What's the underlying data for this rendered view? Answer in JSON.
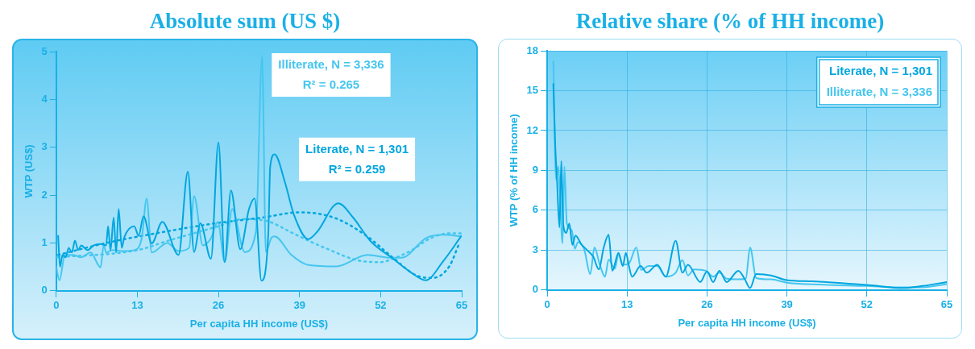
{
  "chart_data": [
    {
      "type": "line",
      "title": "Absolute sum (US $)",
      "xlabel": "Per capita HH income (US$)",
      "ylabel": "WTP (US$)",
      "xlim": [
        0,
        65
      ],
      "xticks": [
        0,
        13,
        26,
        39,
        52,
        65
      ],
      "ylim": [
        0,
        5
      ],
      "yticks": [
        0,
        1,
        2,
        3,
        4,
        5
      ],
      "grid": false,
      "legend": false,
      "marker": "none",
      "annotations": [
        "R² = 0.259",
        "R² = 0.265"
      ],
      "series": [
        {
          "name": "Literate, N = 1,301",
          "color": "#00a6df",
          "x": [
            0.3,
            0.6,
            1,
            1.5,
            2,
            2.5,
            3,
            3.5,
            4,
            5,
            6,
            7,
            8,
            8.3,
            8.7,
            9.2,
            9.6,
            10,
            10.5,
            10.9,
            12.5,
            13.2,
            14,
            15.3,
            17,
            19.6,
            21.1,
            22.1,
            23.1,
            24.8,
            26,
            27,
            28,
            29.5,
            30.9,
            31.8,
            32.9,
            34,
            34.3,
            35,
            36.7,
            38.1,
            40.4,
            41.8,
            45.2,
            47.6,
            50.3,
            54,
            56.7,
            59.2,
            62.1,
            64.9
          ],
          "values": [
            1.15,
            0.5,
            0.75,
            0.7,
            0.9,
            0.8,
            1.05,
            0.85,
            0.95,
            0.85,
            0.95,
            0.98,
            0.95,
            1.35,
            0.85,
            1.53,
            0.8,
            1.71,
            0.9,
            1.12,
            1.35,
            1.15,
            1.56,
            0.99,
            1.44,
            0.75,
            2.49,
            0.81,
            1.41,
            0.67,
            3.1,
            0.6,
            2.1,
            0.87,
            1.71,
            1.93,
            0.21,
            1.23,
            2.6,
            2.85,
            2.25,
            1.59,
            1.08,
            1.23,
            1.83,
            1.53,
            1.05,
            0.67,
            0.4,
            0.22,
            0.63,
            1.14
          ]
        },
        {
          "name": "Illiterate, N = 3,336",
          "color": "#45c6ef",
          "x": [
            0,
            0.5,
            1.4,
            2.7,
            4,
            5.5,
            7.1,
            7.6,
            8,
            9,
            10.7,
            12.5,
            13.7,
            14.5,
            15.3,
            17.8,
            19.6,
            21.3,
            22.1,
            23.5,
            24.8,
            25.9,
            27,
            28.2,
            30.2,
            32,
            33,
            33.6,
            34.5,
            35,
            37.7,
            40.4,
            44.9,
            49.9,
            53.5,
            55.3,
            59.4,
            62.1,
            64.9
          ],
          "values": [
            0.5,
            0.22,
            0.75,
            0.75,
            0.7,
            0.8,
            0.49,
            0.95,
            0.8,
            0.85,
            0.83,
            0.85,
            1.1,
            1.93,
            0.8,
            1.0,
            0.83,
            0.9,
            1.98,
            0.95,
            1.1,
            1.44,
            0.6,
            1.71,
            0.81,
            1.23,
            4.9,
            0.81,
            1.11,
            1.14,
            0.75,
            0.54,
            0.51,
            0.75,
            0.69,
            0.69,
            1.11,
            1.17,
            1.14
          ]
        },
        {
          "type": "line",
          "color": "#00a6df",
          "line_style": "dotted",
          "x": [
            0.3,
            8,
            15.9,
            25,
            33,
            39,
            44.5,
            49.5,
            54,
            57.6,
            60.3,
            63,
            64.6
          ],
          "values": [
            0.75,
            1.0,
            1.2,
            1.4,
            1.53,
            1.64,
            1.53,
            1.17,
            0.69,
            0.33,
            0.27,
            0.51,
            0.99
          ]
        },
        {
          "type": "line",
          "color": "#45c6ef",
          "line_style": "dotted",
          "x": [
            0,
            13,
            18,
            26,
            30,
            34,
            38,
            43,
            49,
            52,
            54,
            57,
            60,
            63,
            65
          ],
          "values": [
            0.7,
            0.85,
            1.05,
            1.35,
            1.5,
            1.45,
            1.2,
            0.9,
            0.62,
            0.6,
            0.67,
            0.85,
            1.1,
            1.2,
            1.2
          ]
        }
      ]
    },
    {
      "type": "line",
      "title": "Relative share (% of HH income)",
      "xlabel": "Per capita HH income (US$)",
      "ylabel": "WTP (% of HH income)",
      "xlim": [
        0,
        65
      ],
      "xticks": [
        0,
        13,
        26,
        39,
        52,
        65
      ],
      "ylim": [
        0,
        18
      ],
      "yticks": [
        0,
        3,
        6,
        9,
        12,
        15,
        18
      ],
      "grid": true,
      "legend": "top right",
      "marker": "none",
      "series": [
        {
          "name": "Literate, N = 1,301",
          "color": "#00a6df",
          "x": [
            1.0,
            1.3,
            1.6,
            2.0,
            2.3,
            2.6,
            3.1,
            3.6,
            4.1,
            4.6,
            5.6,
            6.5,
            7.5,
            8.4,
            9.2,
            10,
            10.6,
            11.6,
            12.3,
            12.8,
            13.3,
            13.8,
            15.2,
            16.2,
            17.9,
            19.3,
            20.9,
            22,
            22.9,
            24.9,
            26,
            27,
            28,
            29.2,
            31.1,
            32.1,
            33,
            34,
            36.4,
            38.9,
            43.2,
            52.8,
            57.7,
            61,
            65
          ],
          "values": [
            15.5,
            11,
            8.3,
            4.7,
            9.7,
            5,
            4.3,
            5.0,
            3.4,
            4.1,
            3.4,
            3.0,
            2.5,
            1.55,
            3.2,
            4.15,
            1.45,
            2.8,
            1.8,
            2.8,
            1.8,
            1.0,
            1.8,
            1.3,
            1.9,
            1.0,
            3.7,
            1.3,
            1.9,
            0.6,
            1.4,
            0.6,
            1.45,
            0.6,
            1.45,
            0.85,
            0.15,
            1.2,
            1.1,
            0.75,
            0.65,
            0.35,
            0.15,
            0.3,
            0.6
          ]
        },
        {
          "name": "Illiterate, N = 3,336",
          "color": "#45c6ef",
          "x": [
            1.0,
            1.45,
            1.8,
            2.0,
            2.5,
            2.8,
            3.2,
            4.0,
            4.5,
            5.0,
            6,
            7,
            7.7,
            8.5,
            9.4,
            10,
            11,
            11.6,
            12.3,
            13.3,
            14.5,
            15.3,
            16.5,
            17.9,
            19.3,
            20.9,
            22,
            22.9,
            23.9,
            25.8,
            27,
            28,
            29.2,
            31,
            32.3,
            33,
            34,
            36.4,
            39,
            45,
            52,
            57,
            61,
            65
          ],
          "values": [
            17.2,
            8.3,
            9.3,
            8,
            3.5,
            9.3,
            5,
            4.5,
            3.1,
            3.6,
            3.1,
            1.2,
            3.2,
            2.0,
            1.0,
            2.3,
            1.6,
            2.7,
            1.9,
            2.0,
            3.2,
            1.5,
            1.8,
            1.8,
            1.0,
            1.3,
            2.25,
            1.1,
            1.55,
            1.45,
            1.0,
            1.3,
            0.85,
            0.8,
            0.85,
            3.2,
            0.9,
            0.8,
            0.55,
            0.4,
            0.3,
            0.2,
            0.2,
            0.45
          ]
        }
      ]
    }
  ]
}
